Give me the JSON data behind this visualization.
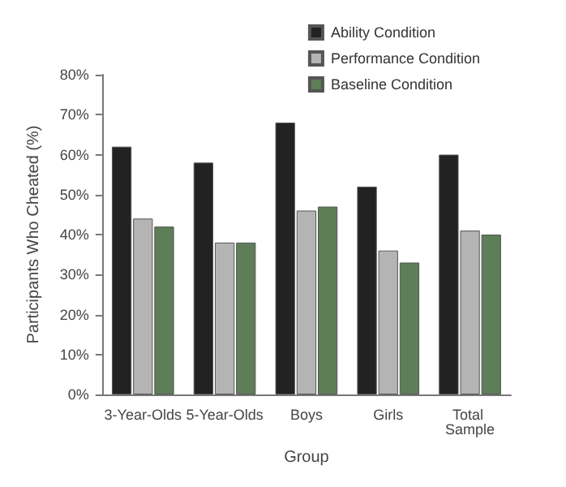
{
  "chart_data": {
    "type": "bar",
    "xlabel": "Group",
    "ylabel": "Participants Who Cheated (%)",
    "categories": [
      "3-Year-Olds",
      "5-Year-Olds",
      "Boys",
      "Girls",
      "Total Sample"
    ],
    "series": [
      {
        "name": "Ability Condition",
        "color": "#222222",
        "values": [
          62,
          58,
          68,
          52,
          60
        ]
      },
      {
        "name": "Performance Condition",
        "color": "#b4b4b4",
        "values": [
          44,
          38,
          46,
          36,
          41
        ]
      },
      {
        "name": "Baseline Condition",
        "color": "#5e7e58",
        "values": [
          42,
          38,
          47,
          33,
          40
        ]
      }
    ],
    "ylim": [
      0,
      80
    ],
    "yticks": [
      {
        "value": 0,
        "label": "0%"
      },
      {
        "value": 10,
        "label": "10%"
      },
      {
        "value": 20,
        "label": "20%"
      },
      {
        "value": 30,
        "label": "30%"
      },
      {
        "value": 40,
        "label": "40%"
      },
      {
        "value": 50,
        "label": "50%"
      },
      {
        "value": 60,
        "label": "60%"
      },
      {
        "value": 70,
        "label": "70%"
      },
      {
        "value": 80,
        "label": "80%"
      }
    ],
    "grid": false,
    "legend": "top right"
  }
}
